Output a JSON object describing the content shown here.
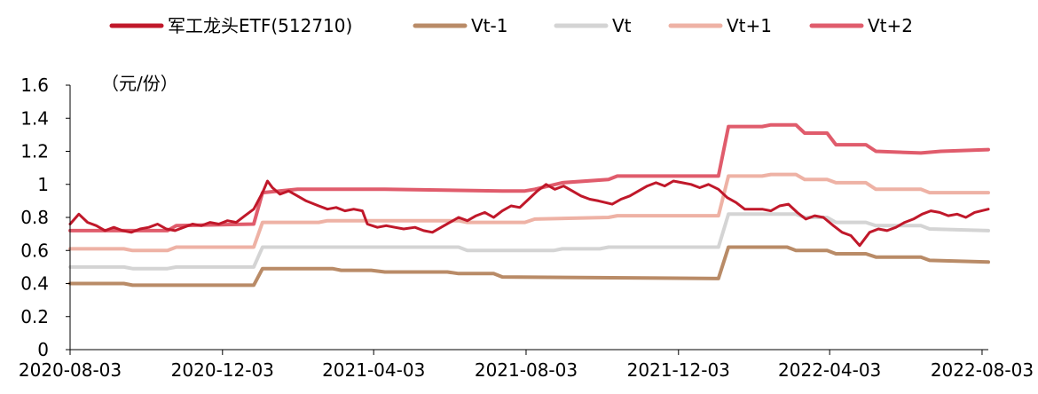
{
  "chart_data": {
    "type": "line",
    "unit_label": "（元/份）",
    "xlabel": "",
    "ylabel": "",
    "ylim": [
      0,
      1.6
    ],
    "yticks": [
      "0",
      "0.2",
      "0.4",
      "0.6",
      "0.8",
      "1",
      "1.2",
      "1.4",
      "1.6"
    ],
    "x_ticks": [
      "2020-08-03",
      "2020-12-03",
      "2021-04-03",
      "2021-08-03",
      "2021-12-03",
      "2022-04-03",
      "2022-08-03"
    ],
    "x_range": [
      "2020-08-03",
      "2022-08-08"
    ],
    "grid": false,
    "legend_position": "top",
    "series": [
      {
        "name": "军工龙头ETF(512710)",
        "color": "#c0182a",
        "width": 3,
        "points": [
          [
            "2020-08-03",
            0.76
          ],
          [
            "2020-08-10",
            0.82
          ],
          [
            "2020-08-17",
            0.77
          ],
          [
            "2020-08-24",
            0.75
          ],
          [
            "2020-08-31",
            0.72
          ],
          [
            "2020-09-07",
            0.74
          ],
          [
            "2020-09-14",
            0.72
          ],
          [
            "2020-09-21",
            0.71
          ],
          [
            "2020-09-28",
            0.73
          ],
          [
            "2020-10-05",
            0.74
          ],
          [
            "2020-10-12",
            0.76
          ],
          [
            "2020-10-19",
            0.73
          ],
          [
            "2020-10-26",
            0.72
          ],
          [
            "2020-11-02",
            0.74
          ],
          [
            "2020-11-09",
            0.76
          ],
          [
            "2020-11-16",
            0.75
          ],
          [
            "2020-11-23",
            0.77
          ],
          [
            "2020-11-30",
            0.76
          ],
          [
            "2020-12-07",
            0.78
          ],
          [
            "2020-12-14",
            0.77
          ],
          [
            "2020-12-21",
            0.81
          ],
          [
            "2020-12-28",
            0.85
          ],
          [
            "2021-01-04",
            0.95
          ],
          [
            "2021-01-08",
            1.02
          ],
          [
            "2021-01-12",
            0.98
          ],
          [
            "2021-01-18",
            0.94
          ],
          [
            "2021-01-25",
            0.96
          ],
          [
            "2021-02-01",
            0.93
          ],
          [
            "2021-02-08",
            0.9
          ],
          [
            "2021-02-18",
            0.87
          ],
          [
            "2021-02-25",
            0.85
          ],
          [
            "2021-03-04",
            0.86
          ],
          [
            "2021-03-11",
            0.84
          ],
          [
            "2021-03-18",
            0.85
          ],
          [
            "2021-03-25",
            0.84
          ],
          [
            "2021-03-29",
            0.76
          ],
          [
            "2021-04-06",
            0.74
          ],
          [
            "2021-04-13",
            0.75
          ],
          [
            "2021-04-20",
            0.74
          ],
          [
            "2021-04-27",
            0.73
          ],
          [
            "2021-05-06",
            0.74
          ],
          [
            "2021-05-13",
            0.72
          ],
          [
            "2021-05-20",
            0.71
          ],
          [
            "2021-05-27",
            0.74
          ],
          [
            "2021-06-03",
            0.77
          ],
          [
            "2021-06-10",
            0.8
          ],
          [
            "2021-06-17",
            0.78
          ],
          [
            "2021-06-24",
            0.81
          ],
          [
            "2021-07-01",
            0.83
          ],
          [
            "2021-07-08",
            0.8
          ],
          [
            "2021-07-15",
            0.84
          ],
          [
            "2021-07-22",
            0.87
          ],
          [
            "2021-07-29",
            0.86
          ],
          [
            "2021-08-05",
            0.91
          ],
          [
            "2021-08-12",
            0.96
          ],
          [
            "2021-08-19",
            1.0
          ],
          [
            "2021-08-26",
            0.97
          ],
          [
            "2021-09-02",
            0.99
          ],
          [
            "2021-09-09",
            0.96
          ],
          [
            "2021-09-16",
            0.93
          ],
          [
            "2021-09-23",
            0.91
          ],
          [
            "2021-09-30",
            0.9
          ],
          [
            "2021-10-11",
            0.88
          ],
          [
            "2021-10-18",
            0.91
          ],
          [
            "2021-10-25",
            0.93
          ],
          [
            "2021-11-01",
            0.96
          ],
          [
            "2021-11-08",
            0.99
          ],
          [
            "2021-11-15",
            1.01
          ],
          [
            "2021-11-22",
            0.99
          ],
          [
            "2021-11-29",
            1.02
          ],
          [
            "2021-12-06",
            1.01
          ],
          [
            "2021-12-13",
            1.0
          ],
          [
            "2021-12-20",
            0.98
          ],
          [
            "2021-12-27",
            1.0
          ],
          [
            "2022-01-04",
            0.97
          ],
          [
            "2022-01-11",
            0.92
          ],
          [
            "2022-01-18",
            0.89
          ],
          [
            "2022-01-25",
            0.85
          ],
          [
            "2022-02-08",
            0.85
          ],
          [
            "2022-02-15",
            0.84
          ],
          [
            "2022-02-22",
            0.87
          ],
          [
            "2022-03-01",
            0.88
          ],
          [
            "2022-03-08",
            0.83
          ],
          [
            "2022-03-15",
            0.79
          ],
          [
            "2022-03-22",
            0.81
          ],
          [
            "2022-03-29",
            0.8
          ],
          [
            "2022-04-06",
            0.75
          ],
          [
            "2022-04-13",
            0.71
          ],
          [
            "2022-04-20",
            0.69
          ],
          [
            "2022-04-27",
            0.63
          ],
          [
            "2022-05-05",
            0.71
          ],
          [
            "2022-05-12",
            0.73
          ],
          [
            "2022-05-19",
            0.72
          ],
          [
            "2022-05-26",
            0.74
          ],
          [
            "2022-06-02",
            0.77
          ],
          [
            "2022-06-09",
            0.79
          ],
          [
            "2022-06-16",
            0.82
          ],
          [
            "2022-06-23",
            0.84
          ],
          [
            "2022-06-30",
            0.83
          ],
          [
            "2022-07-07",
            0.81
          ],
          [
            "2022-07-14",
            0.82
          ],
          [
            "2022-07-21",
            0.8
          ],
          [
            "2022-07-28",
            0.83
          ],
          [
            "2022-08-08",
            0.85
          ]
        ]
      },
      {
        "name": "Vt-1",
        "color": "#b98b67",
        "width": 4,
        "points": [
          [
            "2020-08-03",
            0.4
          ],
          [
            "2020-09-15",
            0.4
          ],
          [
            "2020-09-22",
            0.39
          ],
          [
            "2020-12-28",
            0.39
          ],
          [
            "2021-01-04",
            0.49
          ],
          [
            "2021-03-01",
            0.49
          ],
          [
            "2021-03-08",
            0.48
          ],
          [
            "2021-04-01",
            0.48
          ],
          [
            "2021-04-12",
            0.47
          ],
          [
            "2021-06-01",
            0.47
          ],
          [
            "2021-06-10",
            0.46
          ],
          [
            "2021-07-08",
            0.46
          ],
          [
            "2021-07-15",
            0.44
          ],
          [
            "2022-01-04",
            0.43
          ],
          [
            "2022-01-12",
            0.62
          ],
          [
            "2022-02-28",
            0.62
          ],
          [
            "2022-03-07",
            0.6
          ],
          [
            "2022-04-01",
            0.6
          ],
          [
            "2022-04-08",
            0.58
          ],
          [
            "2022-05-02",
            0.58
          ],
          [
            "2022-05-10",
            0.56
          ],
          [
            "2022-06-15",
            0.56
          ],
          [
            "2022-06-22",
            0.54
          ],
          [
            "2022-08-08",
            0.53
          ]
        ]
      },
      {
        "name": "Vt",
        "color": "#d4d4d4",
        "width": 4,
        "points": [
          [
            "2020-08-03",
            0.5
          ],
          [
            "2020-09-15",
            0.5
          ],
          [
            "2020-09-22",
            0.49
          ],
          [
            "2020-10-20",
            0.49
          ],
          [
            "2020-10-27",
            0.5
          ],
          [
            "2020-12-28",
            0.5
          ],
          [
            "2021-01-04",
            0.62
          ],
          [
            "2021-06-10",
            0.62
          ],
          [
            "2021-06-17",
            0.6
          ],
          [
            "2021-08-25",
            0.6
          ],
          [
            "2021-09-01",
            0.61
          ],
          [
            "2021-10-01",
            0.61
          ],
          [
            "2021-10-08",
            0.62
          ],
          [
            "2022-01-04",
            0.62
          ],
          [
            "2022-01-12",
            0.82
          ],
          [
            "2022-03-07",
            0.82
          ],
          [
            "2022-03-14",
            0.8
          ],
          [
            "2022-04-01",
            0.8
          ],
          [
            "2022-04-08",
            0.77
          ],
          [
            "2022-05-02",
            0.77
          ],
          [
            "2022-05-10",
            0.75
          ],
          [
            "2022-06-15",
            0.75
          ],
          [
            "2022-06-22",
            0.73
          ],
          [
            "2022-08-08",
            0.72
          ]
        ]
      },
      {
        "name": "Vt+1",
        "color": "#eeb2a5",
        "width": 4,
        "points": [
          [
            "2020-08-03",
            0.61
          ],
          [
            "2020-09-15",
            0.61
          ],
          [
            "2020-09-22",
            0.6
          ],
          [
            "2020-10-20",
            0.6
          ],
          [
            "2020-10-27",
            0.62
          ],
          [
            "2020-12-28",
            0.62
          ],
          [
            "2021-01-04",
            0.77
          ],
          [
            "2021-02-18",
            0.77
          ],
          [
            "2021-02-25",
            0.78
          ],
          [
            "2021-06-10",
            0.78
          ],
          [
            "2021-06-17",
            0.77
          ],
          [
            "2021-08-02",
            0.77
          ],
          [
            "2021-08-10",
            0.79
          ],
          [
            "2021-10-08",
            0.8
          ],
          [
            "2021-10-15",
            0.81
          ],
          [
            "2022-01-04",
            0.81
          ],
          [
            "2022-01-12",
            1.05
          ],
          [
            "2022-02-08",
            1.05
          ],
          [
            "2022-02-15",
            1.06
          ],
          [
            "2022-03-07",
            1.06
          ],
          [
            "2022-03-14",
            1.03
          ],
          [
            "2022-04-01",
            1.03
          ],
          [
            "2022-04-08",
            1.01
          ],
          [
            "2022-05-02",
            1.01
          ],
          [
            "2022-05-10",
            0.97
          ],
          [
            "2022-06-15",
            0.97
          ],
          [
            "2022-06-22",
            0.95
          ],
          [
            "2022-08-08",
            0.95
          ]
        ]
      },
      {
        "name": "Vt+2",
        "color": "#e05c6c",
        "width": 4,
        "points": [
          [
            "2020-08-03",
            0.72
          ],
          [
            "2020-10-20",
            0.72
          ],
          [
            "2020-10-27",
            0.75
          ],
          [
            "2020-12-28",
            0.76
          ],
          [
            "2021-01-04",
            0.95
          ],
          [
            "2021-02-01",
            0.97
          ],
          [
            "2021-04-05",
            0.97
          ],
          [
            "2021-04-12",
            0.97
          ],
          [
            "2021-07-15",
            0.96
          ],
          [
            "2021-08-02",
            0.96
          ],
          [
            "2021-08-10",
            0.97
          ],
          [
            "2021-09-01",
            1.01
          ],
          [
            "2021-10-08",
            1.03
          ],
          [
            "2021-10-15",
            1.05
          ],
          [
            "2022-01-04",
            1.05
          ],
          [
            "2022-01-12",
            1.35
          ],
          [
            "2022-02-08",
            1.35
          ],
          [
            "2022-02-15",
            1.36
          ],
          [
            "2022-03-07",
            1.36
          ],
          [
            "2022-03-14",
            1.31
          ],
          [
            "2022-04-01",
            1.31
          ],
          [
            "2022-04-08",
            1.24
          ],
          [
            "2022-05-02",
            1.24
          ],
          [
            "2022-05-10",
            1.2
          ],
          [
            "2022-06-15",
            1.19
          ],
          [
            "2022-07-01",
            1.2
          ],
          [
            "2022-08-08",
            1.21
          ]
        ]
      }
    ]
  }
}
